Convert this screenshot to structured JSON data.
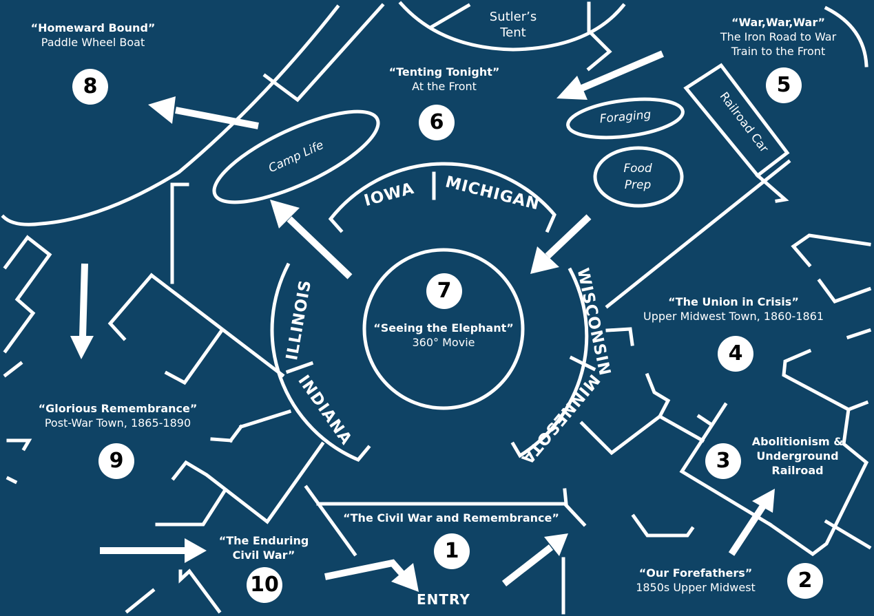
{
  "map": {
    "background_color": "#0f4365",
    "line_color": "#ffffff",
    "badge_color": "#ffffff",
    "badge_text_color": "#000000"
  },
  "exhibits": [
    {
      "number": "1",
      "title": "“The Civil War and Remembrance”",
      "subtitle": ""
    },
    {
      "number": "2",
      "title": "“Our Forefathers”",
      "subtitle": "1850s Upper Midwest"
    },
    {
      "number": "3",
      "title": "Abolitionism & Underground Railroad",
      "subtitle": ""
    },
    {
      "number": "4",
      "title": "“The Union in Crisis”",
      "subtitle": "Upper Midwest Town, 1860-1861"
    },
    {
      "number": "5",
      "title": "“War,War,War”",
      "subtitle": "The Iron Road to War",
      "subtitle2": "Train to the Front"
    },
    {
      "number": "6",
      "title": "“Tenting Tonight”",
      "subtitle": "At the Front"
    },
    {
      "number": "7",
      "title": "“Seeing the Elephant”",
      "subtitle": "360° Movie"
    },
    {
      "number": "8",
      "title": "“Homeward Bound”",
      "subtitle": "Paddle Wheel Boat"
    },
    {
      "number": "9",
      "title": "“Glorious Remembrance”",
      "subtitle": "Post-War Town, 1865-1890"
    },
    {
      "number": "10",
      "title": "“The Enduring Civil War”",
      "subtitle": ""
    }
  ],
  "areas": {
    "sutlers_tent": "Sutler’s Tent",
    "camp_life": "Camp Life",
    "foraging": "Foraging",
    "food_prep": "Food Prep",
    "railroad_car": "Railroad Car"
  },
  "states": {
    "iowa": "IOWA",
    "michigan": "MICHIGAN",
    "wisconsin": "WISCONSIN",
    "minnesota": "MINNESOTA",
    "illinois": "ILLINOIS",
    "indiana": "INDIANA"
  },
  "entry_label": "ENTRY"
}
